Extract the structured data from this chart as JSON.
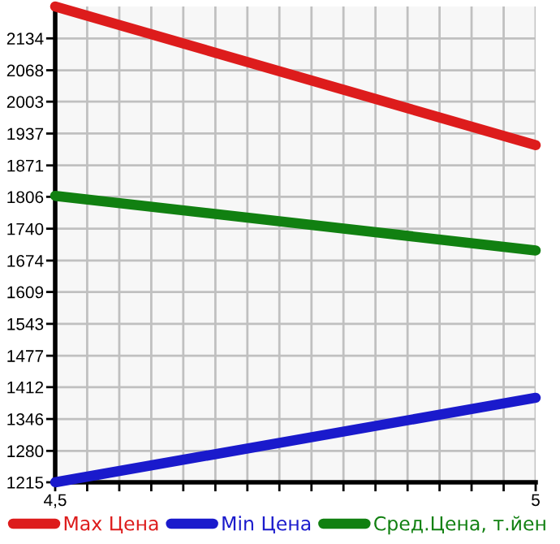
{
  "chart_data": {
    "type": "line",
    "x": [
      4.5,
      5
    ],
    "series": [
      {
        "name": "Max Цена",
        "color": "#dd1c1c",
        "values": [
          2200,
          1913
        ]
      },
      {
        "name": "Min Цена",
        "color": "#1a1acc",
        "values": [
          1215,
          1390
        ]
      },
      {
        "name": "Сред.Цена, т.йен",
        "color": "#118011",
        "values": [
          1808,
          1695
        ]
      }
    ],
    "xlim": [
      4.5,
      5
    ],
    "xticks": [
      {
        "value": 4.5,
        "label": "4,5"
      },
      {
        "value": 4.5333,
        "label": null
      },
      {
        "value": 4.5667,
        "label": null
      },
      {
        "value": 4.6,
        "label": null
      },
      {
        "value": 4.6333,
        "label": null
      },
      {
        "value": 4.6667,
        "label": null
      },
      {
        "value": 4.7,
        "label": null
      },
      {
        "value": 4.7333,
        "label": null
      },
      {
        "value": 4.7667,
        "label": null
      },
      {
        "value": 4.8,
        "label": null
      },
      {
        "value": 4.8333,
        "label": null
      },
      {
        "value": 4.8667,
        "label": null
      },
      {
        "value": 4.9,
        "label": null
      },
      {
        "value": 4.9333,
        "label": null
      },
      {
        "value": 4.9667,
        "label": null
      },
      {
        "value": 5,
        "label": "5"
      }
    ],
    "ylim": [
      1215,
      2200
    ],
    "yticks": [
      1215,
      1280,
      1346,
      1412,
      1477,
      1543,
      1609,
      1674,
      1740,
      1806,
      1871,
      1937,
      2003,
      2068,
      2134
    ],
    "grid": true,
    "legend": "bottom",
    "marker": "none",
    "line_style": "solid"
  }
}
